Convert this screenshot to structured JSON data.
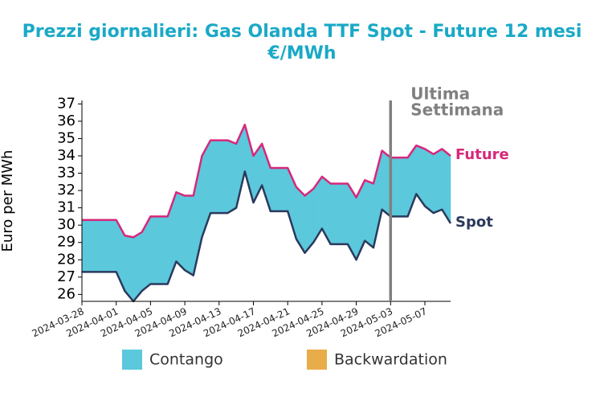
{
  "chart_data": {
    "type": "line",
    "title": "Prezzi giornalieri: Gas Olanda TTF Spot - Future 12 mesi",
    "subtitle": "€/MWh",
    "y_label": "Euro per MWh",
    "x": [
      "2024-03-28",
      "2024-03-29",
      "2024-03-30",
      "2024-03-31",
      "2024-04-01",
      "2024-04-02",
      "2024-04-03",
      "2024-04-04",
      "2024-04-05",
      "2024-04-06",
      "2024-04-07",
      "2024-04-08",
      "2024-04-09",
      "2024-04-10",
      "2024-04-11",
      "2024-04-12",
      "2024-04-13",
      "2024-04-14",
      "2024-04-15",
      "2024-04-16",
      "2024-04-17",
      "2024-04-18",
      "2024-04-19",
      "2024-04-20",
      "2024-04-21",
      "2024-04-22",
      "2024-04-23",
      "2024-04-24",
      "2024-04-25",
      "2024-04-26",
      "2024-04-27",
      "2024-04-28",
      "2024-04-29",
      "2024-04-30",
      "2024-05-01",
      "2024-05-02",
      "2024-05-03",
      "2024-05-04",
      "2024-05-05",
      "2024-05-06",
      "2024-05-07",
      "2024-05-08",
      "2024-05-09",
      "2024-05-10"
    ],
    "series": [
      {
        "name": "Future",
        "color": "#d6287a",
        "values": [
          30.3,
          30.3,
          30.3,
          30.3,
          30.3,
          29.4,
          29.3,
          29.6,
          30.5,
          30.5,
          30.5,
          31.9,
          31.7,
          31.7,
          34.0,
          34.9,
          34.9,
          34.9,
          34.7,
          35.8,
          34.0,
          34.7,
          33.3,
          33.3,
          33.3,
          32.2,
          31.7,
          32.1,
          32.8,
          32.4,
          32.4,
          32.4,
          31.6,
          32.6,
          32.4,
          34.3,
          33.9,
          33.9,
          33.9,
          34.6,
          34.4,
          34.1,
          34.4,
          34.0
        ]
      },
      {
        "name": "Spot",
        "color": "#2b3a5c",
        "values": [
          27.3,
          27.3,
          27.3,
          27.3,
          27.3,
          26.2,
          25.6,
          26.2,
          26.6,
          26.6,
          26.6,
          27.9,
          27.4,
          27.1,
          29.3,
          30.7,
          30.7,
          30.7,
          31.0,
          33.1,
          31.3,
          32.3,
          30.8,
          30.8,
          30.8,
          29.2,
          28.4,
          29.0,
          29.8,
          28.9,
          28.9,
          28.9,
          28.0,
          29.1,
          28.7,
          30.9,
          30.5,
          30.5,
          30.5,
          31.8,
          31.1,
          30.7,
          30.9,
          30.1
        ]
      }
    ],
    "legend": [
      {
        "name": "Contango",
        "color": "#5bc8dc"
      },
      {
        "name": "Backwardation",
        "color": "#e8ac4a"
      }
    ],
    "annotation": {
      "x": "2024-05-03",
      "text": [
        "Ultima",
        "Settimana"
      ],
      "color": "#808080"
    },
    "xlim": [
      "2024-03-28",
      "2024-05-10"
    ],
    "xticks": [
      "2024-03-28",
      "2024-04-01",
      "2024-04-05",
      "2024-04-09",
      "2024-04-13",
      "2024-04-17",
      "2024-04-21",
      "2024-04-25",
      "2024-04-29",
      "2024-05-03",
      "2024-05-07"
    ],
    "ylim": [
      25.6,
      37.2
    ],
    "yticks": [
      26,
      27,
      28,
      29,
      30,
      31,
      32,
      33,
      34,
      35,
      36,
      37
    ],
    "grid": false
  }
}
